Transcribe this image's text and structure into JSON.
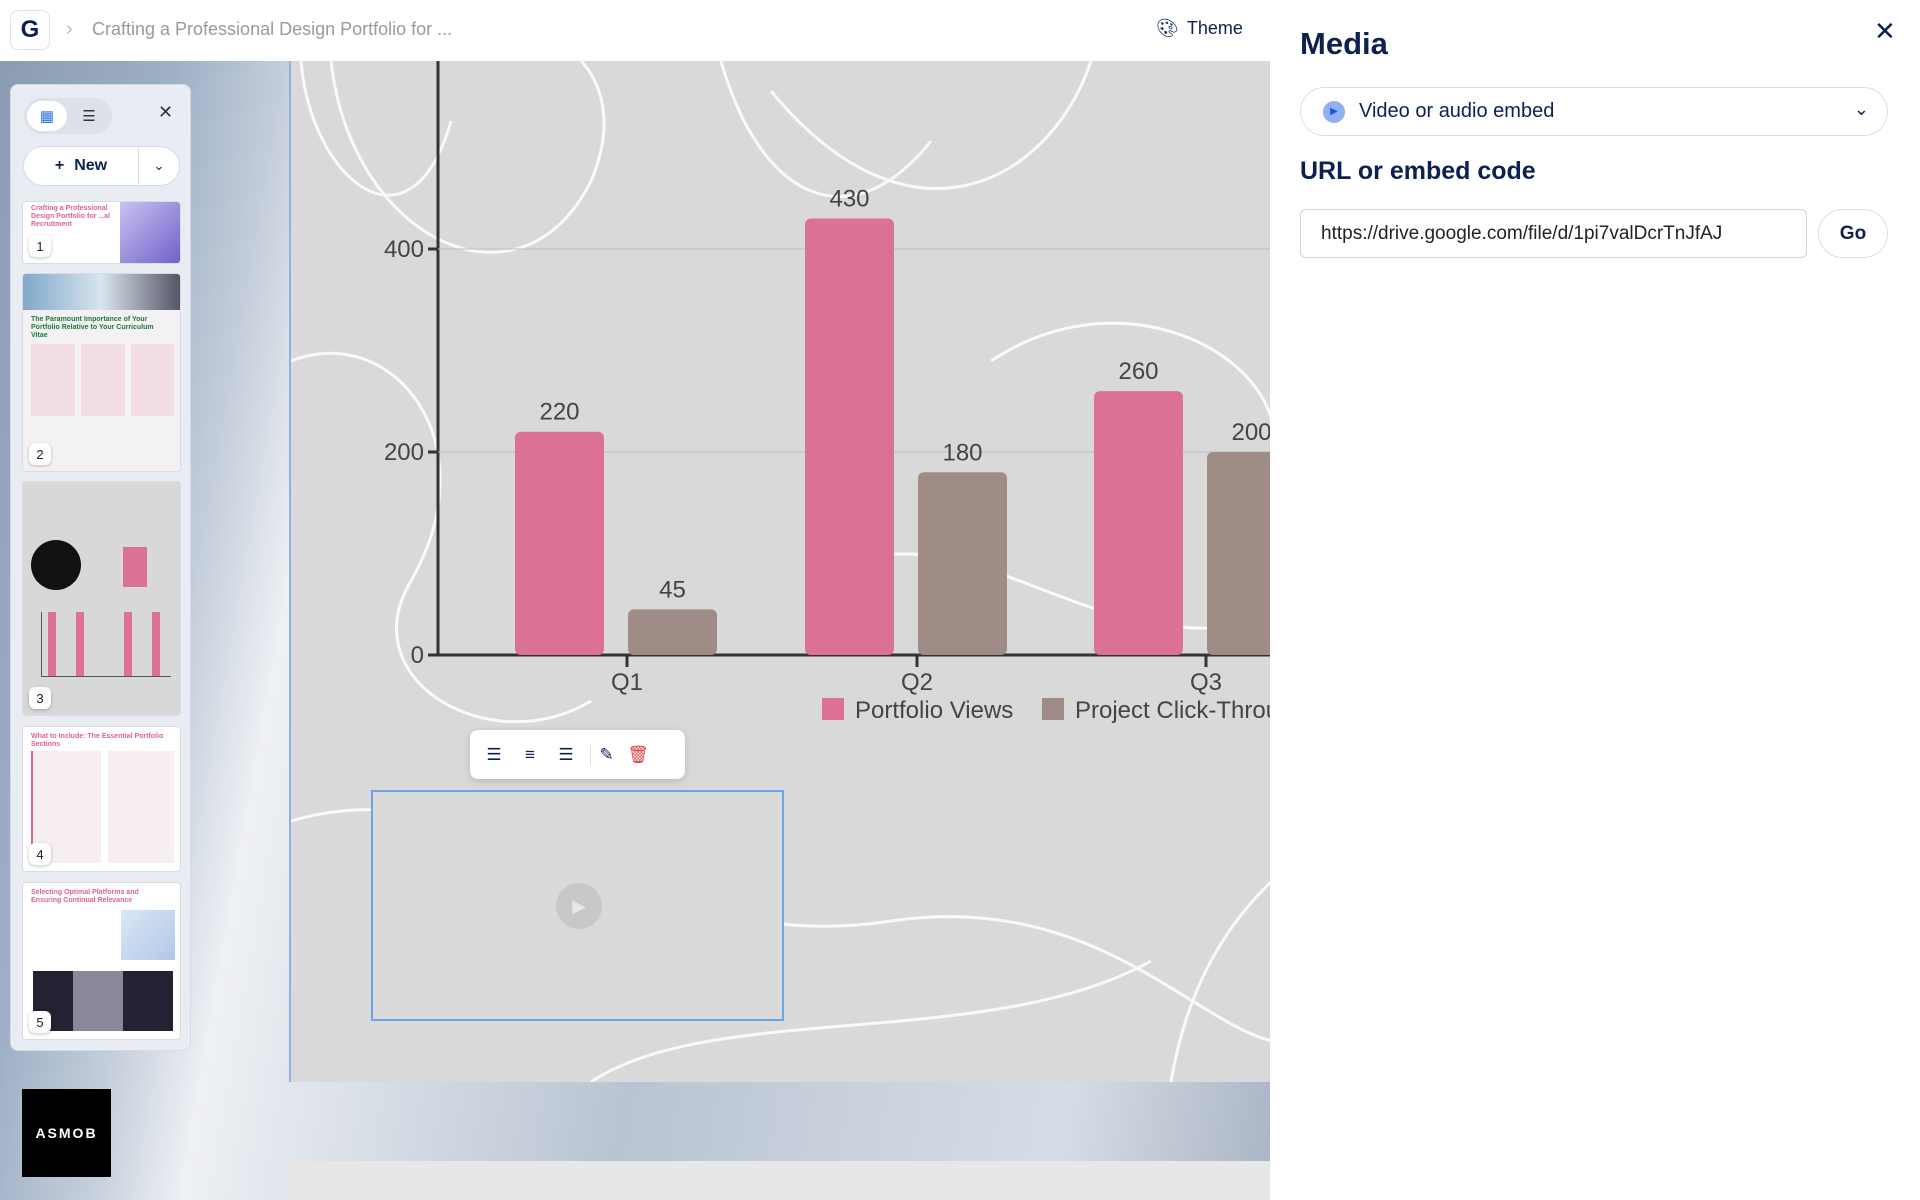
{
  "header": {
    "breadcrumb": "Crafting a Professional Design Portfolio for ...",
    "theme_label": "Theme",
    "logo_letter": "G"
  },
  "sidebar": {
    "new_label": "New",
    "slides": [
      {
        "number": "1",
        "title": "Crafting a Professional Design Portfolio for ...al Recruitment"
      },
      {
        "number": "2",
        "title": "The Paramount Importance of Your Portfolio Relative to Your Curriculum Vitae"
      },
      {
        "number": "3",
        "title": ""
      },
      {
        "number": "4",
        "title": "What to Include: The Essential Portfolio Sections"
      },
      {
        "number": "5",
        "title": "Selecting Optimal Platforms and Ensuring Continual Relevance"
      }
    ]
  },
  "panel": {
    "title": "Media",
    "type_select": "Video or audio embed",
    "url_label": "URL or embed code",
    "url_value": "https://drive.google.com/file/d/1pi7valDcrTnJfAJ",
    "go_label": "Go"
  },
  "logo_text": "ASMOB",
  "colors": {
    "pink": "#dc7197",
    "brown": "#9f8c87",
    "accent": "#0d2150"
  },
  "chart_data": {
    "type": "bar",
    "categories": [
      "Q1",
      "Q2",
      "Q3"
    ],
    "series": [
      {
        "name": "Portfolio Views",
        "values": [
          220,
          430,
          260
        ],
        "color": "#dc7197"
      },
      {
        "name": "Project Click-Throu",
        "values": [
          45,
          180,
          200
        ],
        "color": "#9f8c87"
      }
    ],
    "yticks": [
      "0",
      "200",
      "400"
    ],
    "ylim": [
      0,
      500
    ],
    "legend": "bottom"
  }
}
